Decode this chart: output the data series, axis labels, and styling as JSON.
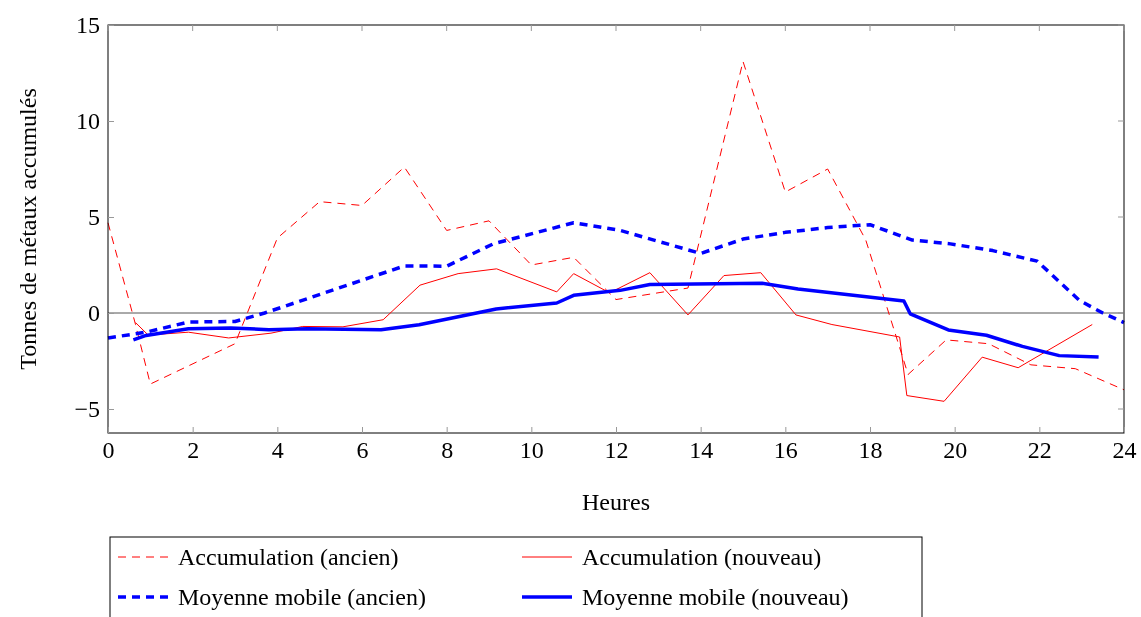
{
  "chart_data": {
    "type": "line",
    "xlabel": "Heures",
    "ylabel": "Tonnes de métaux accumulés",
    "xlim": [
      0,
      24
    ],
    "xticks": [
      0,
      2,
      4,
      6,
      8,
      10,
      12,
      14,
      16,
      18,
      20,
      22,
      24
    ],
    "ylim": [
      -6.25,
      15
    ],
    "yticks": [
      -5,
      0,
      5,
      10,
      15
    ],
    "grid": false,
    "legend": "bottom",
    "marker": "none",
    "ref_lines": [
      {
        "axis": "y",
        "value": 0,
        "color": "#555555"
      }
    ],
    "series": [
      {
        "name": "Accumulation (ancien)",
        "color": "#ff0000",
        "line_style": "dashed",
        "x": [
          0,
          0.65,
          1,
          3,
          4,
          5,
          6,
          7,
          8,
          9,
          10,
          11,
          12,
          13.7,
          15,
          16,
          17,
          17.9,
          18.9,
          19.8,
          20.8,
          21.8,
          22.85,
          24
        ],
        "values": [
          4.7,
          -0.6,
          -3.7,
          -1.6,
          3.9,
          5.8,
          5.6,
          7.6,
          4.3,
          4.8,
          2.5,
          2.9,
          0.7,
          1.3,
          13.1,
          6.3,
          7.5,
          3.8,
          -3.2,
          -1.4,
          -1.6,
          -2.7,
          -2.9,
          -4.0
        ]
      },
      {
        "name": "Accumulation (nouveau)",
        "color": "#ff0000",
        "line_style": "solid",
        "x": [
          0.65,
          0.95,
          1.9,
          2.85,
          3.85,
          4.6,
          5.55,
          6.5,
          7.37,
          8.27,
          9.18,
          10.6,
          11,
          11.85,
          12.8,
          13.7,
          14.55,
          15.42,
          16.25,
          17.1,
          18.7,
          18.87,
          19.75,
          20.65,
          21.5,
          23.25
        ],
        "values": [
          -0.5,
          -1.15,
          -1.0,
          -1.3,
          -1.05,
          -0.7,
          -0.72,
          -0.35,
          1.45,
          2.05,
          2.3,
          1.1,
          2.05,
          1.05,
          2.1,
          -0.1,
          1.95,
          2.1,
          -0.1,
          -0.6,
          -1.25,
          -4.3,
          -4.6,
          -2.3,
          -2.85,
          -0.6
        ]
      },
      {
        "name": "Moyenne mobile (ancien)",
        "color": "#0000ff",
        "line_style": "dashed",
        "x": [
          0,
          0.9,
          1.9,
          3,
          3.7,
          7,
          8,
          9.1,
          11,
          12.1,
          14,
          15,
          16,
          17,
          18,
          19,
          19.9,
          20.9,
          21.95,
          22.95,
          23.5,
          24
        ],
        "values": [
          -1.3,
          -1.0,
          -0.47,
          -0.44,
          0,
          2.45,
          2.44,
          3.6,
          4.7,
          4.3,
          3.1,
          3.85,
          4.2,
          4.45,
          4.6,
          3.8,
          3.6,
          3.25,
          2.7,
          0.65,
          0,
          -0.5
        ]
      },
      {
        "name": "Moyenne mobile (nouveau)",
        "color": "#0000ff",
        "line_style": "solid",
        "x": [
          0.6,
          0.9,
          1.9,
          2.9,
          3.8,
          4.7,
          6.45,
          7.35,
          9.17,
          10.6,
          11,
          12.1,
          12.8,
          15.45,
          16.3,
          18.8,
          18.95,
          19.85,
          20.75,
          21.6,
          22.47,
          23.4
        ],
        "values": [
          -1.4,
          -1.17,
          -0.82,
          -0.78,
          -0.87,
          -0.82,
          -0.87,
          -0.61,
          0.21,
          0.52,
          0.92,
          1.18,
          1.48,
          1.55,
          1.25,
          0.63,
          -0.04,
          -0.88,
          -1.16,
          -1.74,
          -2.22,
          -2.29
        ]
      }
    ]
  }
}
